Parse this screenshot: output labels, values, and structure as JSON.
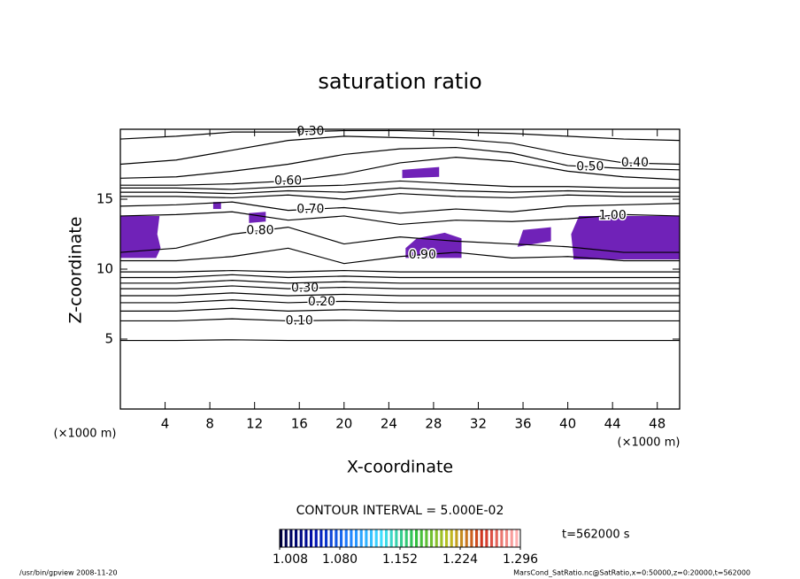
{
  "chart_data": {
    "type": "contour",
    "title": "saturation ratio",
    "x_label": "X-coordinate",
    "y_label": "Z-coordinate",
    "x_unit": "(×1000 m)",
    "y_unit": "(×1000 m)",
    "xlim": [
      0,
      50
    ],
    "ylim": [
      0,
      20
    ],
    "xticks": [
      4,
      8,
      12,
      16,
      20,
      24,
      28,
      32,
      36,
      40,
      44,
      48
    ],
    "yticks": [
      5,
      10,
      15
    ],
    "line_color": "#000000",
    "x": [
      0,
      5,
      10,
      15,
      20,
      25,
      30,
      35,
      40,
      45,
      50
    ],
    "contours": [
      {
        "z": [
          4.9,
          4.9,
          4.95,
          4.9,
          4.9,
          4.9,
          4.9,
          4.9,
          4.9,
          4.9,
          4.9
        ]
      },
      {
        "label": "0.10",
        "label_x": 16,
        "z": [
          6.3,
          6.3,
          6.45,
          6.3,
          6.35,
          6.3,
          6.3,
          6.3,
          6.3,
          6.3,
          6.3
        ]
      },
      {
        "z": [
          7.0,
          7.0,
          7.2,
          7.0,
          7.1,
          7.0,
          7.0,
          7.0,
          7.0,
          7.0,
          7.0
        ]
      },
      {
        "label": "0.20",
        "label_x": 18,
        "z": [
          7.6,
          7.6,
          7.8,
          7.6,
          7.7,
          7.6,
          7.6,
          7.6,
          7.6,
          7.6,
          7.6
        ]
      },
      {
        "z": [
          8.1,
          8.1,
          8.3,
          8.1,
          8.2,
          8.1,
          8.1,
          8.1,
          8.1,
          8.1,
          8.1
        ]
      },
      {
        "label": "0.30",
        "label_x": 16.5,
        "z": [
          8.6,
          8.6,
          8.8,
          8.6,
          8.7,
          8.6,
          8.6,
          8.6,
          8.6,
          8.6,
          8.6
        ]
      },
      {
        "z": [
          9.0,
          9.0,
          9.2,
          9.0,
          9.1,
          9.0,
          9.0,
          9.0,
          9.0,
          9.0,
          9.0
        ]
      },
      {
        "z": [
          9.4,
          9.4,
          9.6,
          9.4,
          9.5,
          9.4,
          9.4,
          9.4,
          9.4,
          9.4,
          9.4
        ]
      },
      {
        "z": [
          9.8,
          9.8,
          9.9,
          9.8,
          9.9,
          9.8,
          9.8,
          9.8,
          9.8,
          9.8,
          9.8
        ]
      },
      {
        "label": "0.90",
        "label_x": 27,
        "z": [
          10.6,
          10.6,
          10.9,
          11.5,
          10.4,
          10.9,
          11.2,
          10.8,
          10.9,
          10.6,
          10.6
        ]
      },
      {
        "label": "0.80",
        "label_x": 12.5,
        "z": [
          11.2,
          11.5,
          12.5,
          13.0,
          11.8,
          12.3,
          12.0,
          11.8,
          11.6,
          11.2,
          11.2
        ]
      },
      {
        "label": "1.00",
        "label_x": 44,
        "z": [
          13.8,
          13.9,
          14.1,
          13.5,
          13.8,
          13.2,
          13.5,
          13.4,
          13.6,
          13.9,
          13.8
        ]
      },
      {
        "label": "0.70",
        "label_x": 17,
        "z": [
          14.5,
          14.6,
          14.8,
          14.2,
          14.4,
          14.0,
          14.3,
          14.1,
          14.5,
          14.6,
          14.7
        ]
      },
      {
        "z": [
          15.2,
          15.2,
          15.1,
          15.3,
          15.0,
          15.4,
          15.2,
          15.1,
          15.3,
          15.2,
          15.2
        ]
      },
      {
        "z": [
          15.5,
          15.5,
          15.4,
          15.6,
          15.5,
          15.8,
          15.6,
          15.5,
          15.6,
          15.5,
          15.5
        ]
      },
      {
        "z": [
          15.8,
          15.8,
          15.7,
          15.9,
          16.0,
          16.3,
          16.1,
          15.9,
          15.9,
          15.8,
          15.8
        ]
      },
      {
        "label": "0.60",
        "label_x": 15,
        "z": [
          16.0,
          16.0,
          16.1,
          16.3,
          16.8,
          17.6,
          18.0,
          17.7,
          17.0,
          16.6,
          16.4
        ]
      },
      {
        "label": "0.50",
        "label_x": 42,
        "z": [
          16.5,
          16.6,
          17.0,
          17.5,
          18.2,
          18.6,
          18.7,
          18.3,
          17.4,
          17.2,
          17.1
        ]
      },
      {
        "label": "0.40",
        "label_x": 46,
        "z": [
          17.5,
          17.8,
          18.5,
          19.2,
          19.5,
          19.4,
          19.3,
          19.0,
          18.2,
          17.6,
          17.5
        ]
      },
      {
        "label": "0.30",
        "label_x": 17,
        "z": [
          19.3,
          19.5,
          19.8,
          19.8,
          19.9,
          19.9,
          19.8,
          19.7,
          19.5,
          19.3,
          19.2
        ]
      }
    ],
    "shade_color": "#7022b8",
    "shaded": [
      {
        "x": [
          0,
          3.2,
          3.6,
          3.3,
          3.5,
          0
        ],
        "z": [
          10.8,
          10.8,
          11.5,
          12.5,
          13.8,
          13.8
        ]
      },
      {
        "x": [
          40.5,
          50,
          50,
          41,
          40.3,
          40.5
        ],
        "z": [
          10.7,
          10.7,
          13.8,
          13.8,
          12.5,
          11.0
        ]
      },
      {
        "x": [
          25.5,
          30.5,
          30.5,
          29,
          26.5,
          25.5
        ],
        "z": [
          10.8,
          10.8,
          12.2,
          12.6,
          12.2,
          11.5
        ]
      },
      {
        "x": [
          25.2,
          28.5,
          28.5,
          25.2
        ],
        "z": [
          16.5,
          16.6,
          17.3,
          17.1
        ]
      },
      {
        "x": [
          35.5,
          38.5,
          38.5,
          36
        ],
        "z": [
          11.6,
          12.0,
          13.0,
          12.8
        ]
      },
      {
        "x": [
          11.5,
          13,
          13,
          11.5
        ],
        "z": [
          13.3,
          13.4,
          14.1,
          14.0
        ]
      },
      {
        "x": [
          8.3,
          9,
          9,
          8.3
        ],
        "z": [
          14.3,
          14.3,
          14.8,
          14.8
        ]
      }
    ],
    "contour_interval": "CONTOUR INTERVAL = 5.000E-02",
    "time_label": "t=562000 s",
    "colorbar": {
      "lim": [
        1.008,
        1.296
      ],
      "ticks": [
        1.008,
        {
          "value": 1.08,
          "label": "1.080"
        },
        1.152,
        1.224,
        1.296
      ],
      "colors": [
        "#000040",
        "#0010b0",
        "#2080ff",
        "#40e0ff",
        "#30c040",
        "#c0c020",
        "#d03020",
        "#ffb0b0"
      ]
    },
    "footer_left": "/usr/bin/gpview   2008-11-20",
    "footer_right": "MarsCond_SatRatio.nc@SatRatio,x=0:50000,z=0:20000,t=562000"
  }
}
